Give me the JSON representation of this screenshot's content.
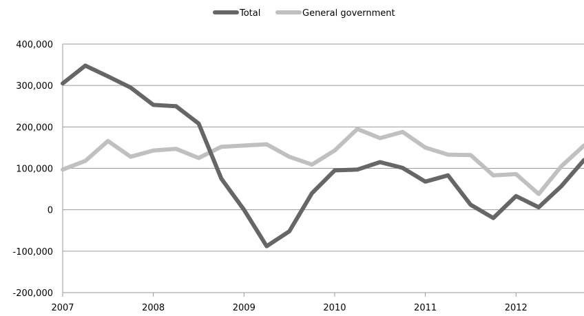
{
  "chart_data": {
    "type": "line",
    "title": "",
    "xlabel": "",
    "ylabel": "",
    "ylim": [
      -200000,
      400000
    ],
    "yticks": [
      -200000,
      -100000,
      0,
      100000,
      200000,
      300000,
      400000
    ],
    "ytick_labels": [
      "-200,000",
      "-100,000",
      "0",
      "100,000",
      "200,000",
      "300,000",
      "400,000"
    ],
    "xlim": [
      2007,
      2012.75
    ],
    "xticks": [
      2007,
      2008,
      2009,
      2010,
      2011,
      2012
    ],
    "xtick_labels": [
      "2007",
      "2008",
      "2009",
      "2010",
      "2011",
      "2012"
    ],
    "grid": true,
    "legend_position": "top-center",
    "x": [
      2007,
      2007.25,
      2007.5,
      2007.75,
      2008,
      2008.25,
      2008.5,
      2008.75,
      2009,
      2009.25,
      2009.5,
      2009.75,
      2010,
      2010.25,
      2010.5,
      2010.75,
      2011,
      2011.25,
      2011.5,
      2011.75,
      2012,
      2012.25,
      2012.5,
      2012.75
    ],
    "series": [
      {
        "name": "Total",
        "color": "#666666",
        "values": [
          305000,
          348000,
          322000,
          295000,
          253000,
          250000,
          208000,
          75000,
          0,
          -88000,
          -52000,
          40000,
          95000,
          97000,
          115000,
          101000,
          68000,
          83000,
          12000,
          -20000,
          33000,
          6000,
          57000,
          120000
        ]
      },
      {
        "name": "General government",
        "color": "#c0c0c0",
        "values": [
          97000,
          118000,
          166000,
          128000,
          143000,
          147000,
          125000,
          152000,
          155000,
          158000,
          128000,
          109000,
          143000,
          195000,
          173000,
          188000,
          150000,
          133000,
          132000,
          83000,
          86000,
          38000,
          105000,
          155000
        ]
      }
    ]
  }
}
